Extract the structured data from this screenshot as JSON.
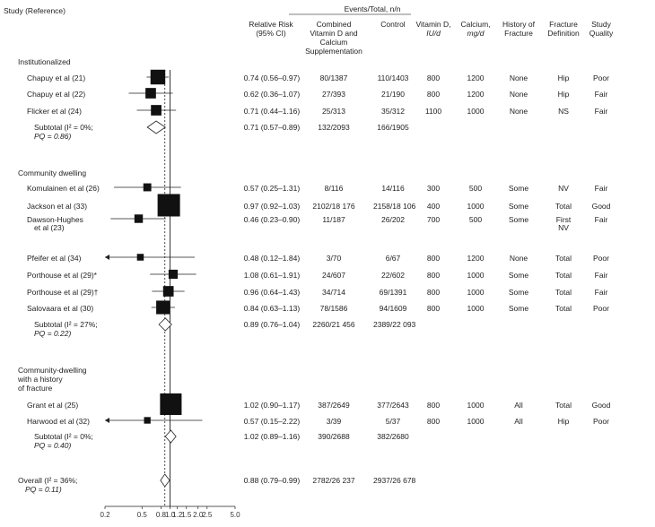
{
  "header": {
    "study": "Study (Reference)",
    "events_total": "Events/Total, n/n",
    "rr": "Relative Risk",
    "ci": "(95% CI)",
    "combined": [
      "Combined",
      "Vitamin D and",
      "Calcium",
      "Supplementation"
    ],
    "control": "Control",
    "vitd": "Vitamin D,",
    "vitd_unit": "IU/d",
    "calcium": "Calcium,",
    "calcium_unit": "mg/d",
    "history": [
      "History of",
      "Fracture"
    ],
    "fracdef": [
      "Fracture",
      "Definition"
    ],
    "quality": [
      "Study",
      "Quality"
    ]
  },
  "groups": {
    "g1": "Institutionalized",
    "g2": "Community dwelling",
    "g3": [
      "Community-dwelling",
      "with a history",
      "of fracture"
    ]
  },
  "rows": [
    {
      "study": "Chapuy et al (21)",
      "rr": "0.74 (0.56–0.97)",
      "comb": "80/1387",
      "ctrl": "110/1403",
      "vitd": "800",
      "ca": "1200",
      "hist": "None",
      "fd": "Hip",
      "q": "Poor"
    },
    {
      "study": "Chapuy et al (22)",
      "rr": "0.62 (0.36–1.07)",
      "comb": "27/393",
      "ctrl": "21/190",
      "vitd": "800",
      "ca": "1200",
      "hist": "None",
      "fd": "Hip",
      "q": "Fair"
    },
    {
      "study": "Flicker et al (24)",
      "rr": "0.71 (0.44–1.16)",
      "comb": "25/313",
      "ctrl": "35/312",
      "vitd": "1100",
      "ca": "1000",
      "hist": "None",
      "fd": "NS",
      "q": "Fair"
    },
    {
      "study": "Komulainen et al (26)",
      "rr": "0.57 (0.25–1.31)",
      "comb": "8/116",
      "ctrl": "14/116",
      "vitd": "300",
      "ca": "500",
      "hist": "Some",
      "fd": "NV",
      "q": "Fair"
    },
    {
      "study": "Jackson et al (33)",
      "rr": "0.97 (0.92–1.03)",
      "comb": "2102/18 176",
      "ctrl": "2158/18 106",
      "vitd": "400",
      "ca": "1000",
      "hist": "Some",
      "fd": "Total",
      "q": "Good"
    },
    {
      "study": "Dawson-Hughes",
      "study2": "et al (23)",
      "rr": "0.46 (0.23–0.90)",
      "comb": "11/187",
      "ctrl": "26/202",
      "vitd": "700",
      "ca": "500",
      "hist": "Some",
      "fd": "First",
      "fd2": "NV",
      "q": "Fair"
    },
    {
      "study": "Pfeifer et al (34)",
      "rr": "0.48 (0.12–1.84)",
      "comb": "3/70",
      "ctrl": "6/67",
      "vitd": "800",
      "ca": "1200",
      "hist": "None",
      "fd": "Total",
      "q": "Poor"
    },
    {
      "study": "Porthouse et al (29)*",
      "rr": "1.08 (0.61–1.91)",
      "comb": "24/607",
      "ctrl": "22/602",
      "vitd": "800",
      "ca": "1000",
      "hist": "Some",
      "fd": "Total",
      "q": "Fair"
    },
    {
      "study": "Porthouse et al (29)†",
      "rr": "0.96 (0.64–1.43)",
      "comb": "34/714",
      "ctrl": "69/1391",
      "vitd": "800",
      "ca": "1000",
      "hist": "Some",
      "fd": "Total",
      "q": "Fair"
    },
    {
      "study": "Salovaara et al (30)",
      "rr": "0.84 (0.63–1.13)",
      "comb": "78/1586",
      "ctrl": "94/1609",
      "vitd": "800",
      "ca": "1000",
      "hist": "Some",
      "fd": "Total",
      "q": "Poor"
    },
    {
      "study": "Grant et al (25)",
      "rr": "1.02 (0.90–1.17)",
      "comb": "387/2649",
      "ctrl": "377/2643",
      "vitd": "800",
      "ca": "1000",
      "hist": "All",
      "fd": "Total",
      "q": "Good"
    },
    {
      "study": "Harwood et al (32)",
      "rr": "0.57 (0.15–2.22)",
      "comb": "3/39",
      "ctrl": "5/37",
      "vitd": "800",
      "ca": "1000",
      "hist": "All",
      "fd": "Hip",
      "q": "Poor"
    }
  ],
  "subtotals": [
    {
      "l1": "Subtotal (I² = 0%;",
      "l2": "PQ = 0.86)",
      "rr": "0.71 (0.57–0.89)",
      "comb": "132/2093",
      "ctrl": "166/1905"
    },
    {
      "l1": "Subtotal (I² = 27%;",
      "l2": "PQ = 0.22)",
      "rr": "0.89 (0.76–1.04)",
      "comb": "2260/21 456",
      "ctrl": "2389/22 093"
    },
    {
      "l1": "Subtotal (I² = 0%;",
      "l2": "PQ = 0.40)",
      "rr": "1.02 (0.89–1.16)",
      "comb": "390/2688",
      "ctrl": "382/2680"
    }
  ],
  "overall": {
    "l1": "Overall (I² = 36%;",
    "l2": "PQ = 0.11)",
    "rr": "0.88 (0.79–0.99)",
    "comb": "2782/26 237",
    "ctrl": "2937/26 678"
  },
  "chart_data": {
    "type": "scatter",
    "xscale": "log",
    "xlim": [
      0.2,
      5.0
    ],
    "reference_line": 1.0,
    "overall_line": 0.88,
    "ticks": [
      "0.2",
      "0.5",
      "0.8",
      "1.0",
      "1.2",
      "1.5",
      "2.0",
      "2.5",
      "5.0"
    ],
    "tick_values": [
      0.2,
      0.5,
      0.8,
      1.0,
      1.2,
      1.5,
      2.0,
      2.5,
      5.0
    ],
    "studies": [
      {
        "name": "Chapuy et al (21)",
        "rr": 0.74,
        "lo": 0.56,
        "hi": 0.97,
        "weight": 0.55
      },
      {
        "name": "Chapuy et al (22)",
        "rr": 0.62,
        "lo": 0.36,
        "hi": 1.07,
        "weight": 0.3
      },
      {
        "name": "Flicker et al (24)",
        "rr": 0.71,
        "lo": 0.44,
        "hi": 1.16,
        "weight": 0.3
      },
      {
        "name": "Komulainen et al (26)",
        "rr": 0.57,
        "lo": 0.25,
        "hi": 1.31,
        "weight": 0.15
      },
      {
        "name": "Jackson et al (33)",
        "rr": 0.97,
        "lo": 0.92,
        "hi": 1.03,
        "weight": 1.0
      },
      {
        "name": "Dawson-Hughes et al (23)",
        "rr": 0.46,
        "lo": 0.23,
        "hi": 0.9,
        "weight": 0.18
      },
      {
        "name": "Pfeifer et al (34)",
        "rr": 0.48,
        "lo": 0.12,
        "hi": 1.84,
        "weight": 0.08,
        "arrow_left": true
      },
      {
        "name": "Porthouse et al (29)*",
        "rr": 1.08,
        "lo": 0.61,
        "hi": 1.91,
        "weight": 0.22
      },
      {
        "name": "Porthouse et al (29)†",
        "rr": 0.96,
        "lo": 0.64,
        "hi": 1.43,
        "weight": 0.3
      },
      {
        "name": "Salovaara et al (30)",
        "rr": 0.84,
        "lo": 0.63,
        "hi": 1.13,
        "weight": 0.48
      },
      {
        "name": "Grant et al (25)",
        "rr": 1.02,
        "lo": 0.9,
        "hi": 1.17,
        "weight": 0.95
      },
      {
        "name": "Harwood et al (32)",
        "rr": 0.57,
        "lo": 0.15,
        "hi": 2.22,
        "weight": 0.07,
        "arrow_left": true
      }
    ],
    "diamonds": [
      {
        "name": "Subtotal Institutionalized",
        "rr": 0.71,
        "lo": 0.57,
        "hi": 0.89
      },
      {
        "name": "Subtotal Community dwelling",
        "rr": 0.89,
        "lo": 0.76,
        "hi": 1.04
      },
      {
        "name": "Subtotal history of fracture",
        "rr": 1.02,
        "lo": 0.89,
        "hi": 1.16
      },
      {
        "name": "Overall",
        "rr": 0.88,
        "lo": 0.79,
        "hi": 0.99
      }
    ]
  }
}
